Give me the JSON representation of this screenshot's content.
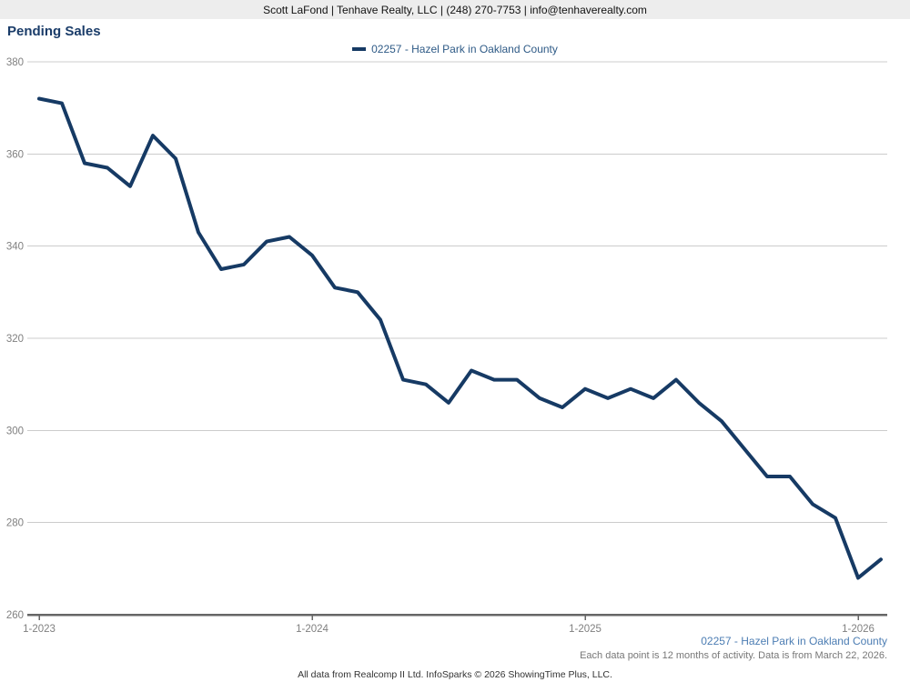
{
  "header": {
    "contact_line": "Scott LaFond | Tenhave Realty, LLC | (248) 270-7753 | info@tenhaverealty.com"
  },
  "title": "Pending Sales",
  "legend": {
    "label": "02257 - Hazel Park in Oakland County"
  },
  "footer": {
    "series_label": "02257 - Hazel Park in Oakland County",
    "note": "Each data point is 12 months of activity. Data is from March 22, 2026.",
    "attribution": "All data from Realcomp II Ltd. InfoSparks © 2026 ShowingTime Plus, LLC."
  },
  "colors": {
    "line": "#163a64",
    "title_text": "#1a3c69",
    "legend_text": "#2e5a86",
    "footer_series_text": "#4c7db3",
    "grid": "#cccccc",
    "axis": "#666666",
    "axis_label": "#808080",
    "header_bg": "#ededed"
  },
  "chart_data": {
    "type": "line",
    "title": "Pending Sales",
    "xlabel": "",
    "ylabel": "",
    "ylim": [
      260,
      380
    ],
    "y_ticks": [
      260,
      280,
      300,
      320,
      340,
      360,
      380
    ],
    "x_tick_labels": [
      "1-2023",
      "1-2024",
      "1-2025",
      "1-2026"
    ],
    "grid": "horizontal",
    "legend_position": "top-center",
    "x": [
      "1-2023",
      "2-2023",
      "3-2023",
      "4-2023",
      "5-2023",
      "6-2023",
      "7-2023",
      "8-2023",
      "9-2023",
      "10-2023",
      "11-2023",
      "12-2023",
      "1-2024",
      "2-2024",
      "3-2024",
      "4-2024",
      "5-2024",
      "6-2024",
      "7-2024",
      "8-2024",
      "9-2024",
      "10-2024",
      "11-2024",
      "12-2024",
      "1-2025",
      "2-2025",
      "3-2025",
      "4-2025",
      "5-2025",
      "6-2025",
      "7-2025",
      "8-2025",
      "9-2025",
      "10-2025",
      "11-2025",
      "12-2025",
      "1-2026",
      "2-2026"
    ],
    "series": [
      {
        "name": "02257 - Hazel Park in Oakland County",
        "values": [
          372,
          371,
          358,
          357,
          353,
          364,
          359,
          343,
          335,
          336,
          341,
          342,
          338,
          331,
          330,
          324,
          311,
          310,
          306,
          313,
          311,
          311,
          307,
          305,
          309,
          307,
          309,
          307,
          311,
          306,
          302,
          296,
          290,
          290,
          284,
          281,
          268,
          272
        ]
      }
    ]
  }
}
